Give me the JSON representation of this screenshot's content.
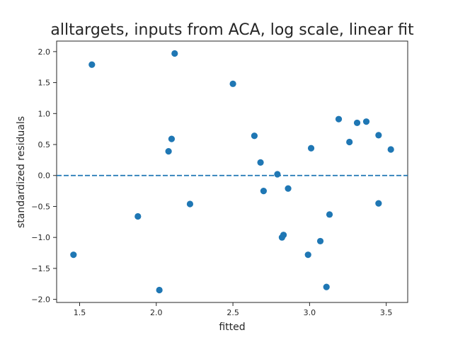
{
  "chart_data": {
    "type": "scatter",
    "title": "alltargets, inputs from ACA, log scale, linear fit",
    "xlabel": "fitted",
    "ylabel": "standardized residuals",
    "xlim": [
      1.35,
      3.64
    ],
    "ylim": [
      -2.05,
      2.17
    ],
    "xticks": [
      1.5,
      2.0,
      2.5,
      3.0,
      3.5
    ],
    "xtick_labels": [
      "1.5",
      "2.0",
      "2.5",
      "3.0",
      "3.5"
    ],
    "yticks": [
      -2.0,
      -1.5,
      -1.0,
      -0.5,
      0.0,
      0.5,
      1.0,
      1.5,
      2.0
    ],
    "ytick_labels": [
      "−2.0",
      "−1.5",
      "−1.0",
      "−0.5",
      "0.0",
      "0.5",
      "1.0",
      "1.5",
      "2.0"
    ],
    "grid": false,
    "reference_line": {
      "y": 0.0,
      "style": "dashed",
      "color": "#1f77b4"
    },
    "marker_color": "#1f77b4",
    "points": [
      {
        "x": 1.46,
        "y": -1.28
      },
      {
        "x": 1.58,
        "y": 1.79
      },
      {
        "x": 1.88,
        "y": -0.66
      },
      {
        "x": 2.02,
        "y": -1.85
      },
      {
        "x": 2.08,
        "y": 0.39
      },
      {
        "x": 2.1,
        "y": 0.59
      },
      {
        "x": 2.12,
        "y": 1.97
      },
      {
        "x": 2.22,
        "y": -0.46
      },
      {
        "x": 2.5,
        "y": 1.48
      },
      {
        "x": 2.64,
        "y": 0.64
      },
      {
        "x": 2.68,
        "y": 0.21
      },
      {
        "x": 2.7,
        "y": -0.25
      },
      {
        "x": 2.79,
        "y": 0.02
      },
      {
        "x": 2.82,
        "y": -1.0
      },
      {
        "x": 2.83,
        "y": -0.96
      },
      {
        "x": 2.86,
        "y": -0.21
      },
      {
        "x": 2.99,
        "y": -1.28
      },
      {
        "x": 3.01,
        "y": 0.44
      },
      {
        "x": 3.07,
        "y": -1.06
      },
      {
        "x": 3.11,
        "y": -1.8
      },
      {
        "x": 3.13,
        "y": -0.63
      },
      {
        "x": 3.19,
        "y": 0.91
      },
      {
        "x": 3.26,
        "y": 0.54
      },
      {
        "x": 3.31,
        "y": 0.85
      },
      {
        "x": 3.37,
        "y": 0.87
      },
      {
        "x": 3.45,
        "y": 0.65
      },
      {
        "x": 3.45,
        "y": -0.45
      },
      {
        "x": 3.53,
        "y": 0.42
      }
    ]
  }
}
